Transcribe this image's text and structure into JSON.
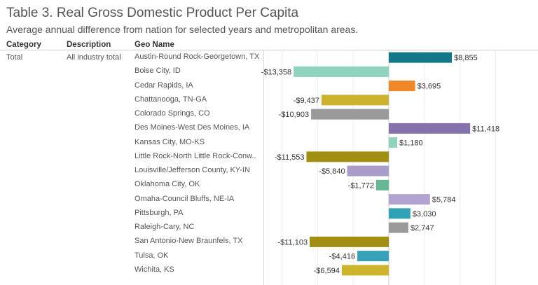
{
  "title": "Table 3. Real Gross Domestic Product Per Capita",
  "subtitle": "Average annual difference from nation for selected years and metropolitan areas.",
  "headers": {
    "category": "Category",
    "description": "Description",
    "geo_name": "Geo Name"
  },
  "table": {
    "category": "Total",
    "description": "All industry total"
  },
  "chart_data": {
    "type": "bar",
    "orientation": "horizontal",
    "categories": [
      "Austin-Round Rock-Georgetown, TX",
      "Boise City, ID",
      "Cedar Rapids, IA",
      "Chattanooga, TN-GA",
      "Colorado Springs, CO",
      "Des Moines-West Des Moines, IA",
      "Kansas City, MO-KS",
      "Little Rock-North Little Rock-Conw..",
      "Louisville/Jefferson County, KY-IN",
      "Oklahoma City, OK",
      "Omaha-Council Bluffs, NE-IA",
      "Pittsburgh, PA",
      "Raleigh-Cary, NC",
      "San Antonio-New Braunfels, TX",
      "Tulsa, OK",
      "Wichita, KS"
    ],
    "values": [
      8855,
      -13358,
      3695,
      -9437,
      -10903,
      11418,
      1180,
      -11553,
      -5840,
      -1772,
      5784,
      3030,
      2747,
      -11103,
      -4416,
      -6594
    ],
    "data_labels": [
      "$8,855",
      "-$13,358",
      "$3,695",
      "-$9,437",
      "-$10,903",
      "$11,418",
      "$1,180",
      "-$11,553",
      "-$5,840",
      "-$1,772",
      "$5,784",
      "$3,030",
      "$2,747",
      "-$11,103",
      "-$4,416",
      "-$6,594"
    ],
    "colors": [
      "#14788a",
      "#8fd3bf",
      "#f0882a",
      "#cdb22e",
      "#9a9a9a",
      "#8572ad",
      "#8fd3bf",
      "#a08f12",
      "#a89dc9",
      "#64b894",
      "#b3a3d1",
      "#2fa3b5",
      "#9a9a9a",
      "#a08f12",
      "#38a2b8",
      "#ccb42c"
    ],
    "xlim": [
      -17500,
      17500
    ],
    "gridlines": [
      -15000,
      -10000,
      -5000,
      0,
      5000,
      10000,
      15000
    ],
    "grid": true
  }
}
